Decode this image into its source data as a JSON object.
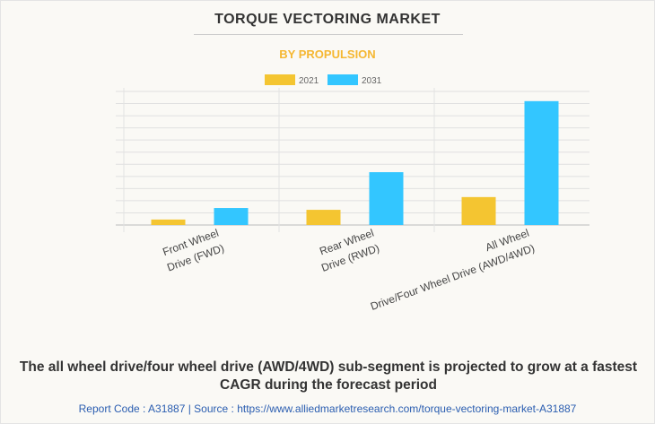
{
  "title": "TORQUE VECTORING MARKET",
  "subtitle": "BY PROPULSION",
  "caption": "The all wheel drive/four wheel drive (AWD/4WD) sub-segment is projected to grow at a fastest CAGR during the forecast period",
  "source": "Report Code : A31887  |  Source : https://www.alliedmarketresearch.com/torque-vectoring-market-A31887",
  "chart_data": {
    "type": "bar",
    "title": "TORQUE VECTORING MARKET",
    "subtitle": "BY PROPULSION",
    "categories": [
      [
        "Front Wheel",
        "Drive (FWD)"
      ],
      [
        "Rear Wheel",
        "Drive (RWD)"
      ],
      [
        "All Wheel",
        "Drive/Four Wheel Drive (AWD/4WD)"
      ]
    ],
    "series": [
      {
        "name": "2021",
        "color": "#f4c531",
        "values": [
          0.45,
          1.25,
          2.3
        ]
      },
      {
        "name": "2031",
        "color": "#33c6ff",
        "values": [
          1.4,
          4.35,
          10.2
        ]
      }
    ],
    "ylim": [
      0,
      11
    ],
    "grid": true,
    "legend": "top-center",
    "xlabel": "",
    "ylabel": ""
  }
}
